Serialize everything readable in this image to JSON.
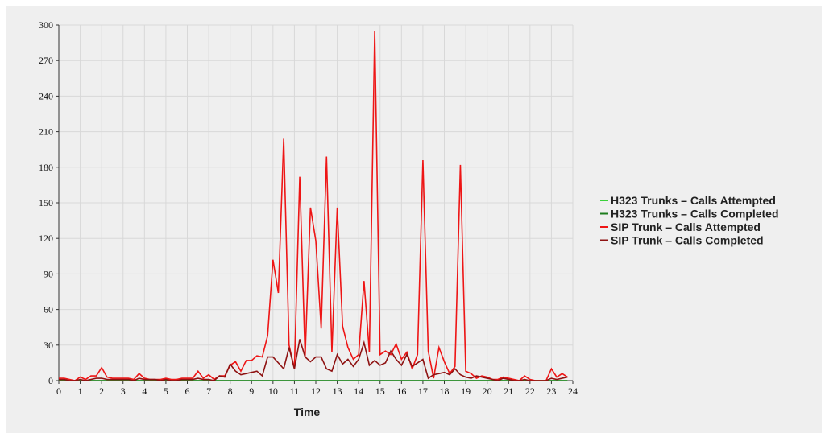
{
  "chart_data": {
    "type": "line",
    "x_label": "Time",
    "x": [
      0,
      0.25,
      0.5,
      0.75,
      1,
      1.25,
      1.5,
      1.75,
      2,
      2.25,
      2.5,
      2.75,
      3,
      3.25,
      3.5,
      3.75,
      4,
      4.25,
      4.5,
      4.75,
      5,
      5.25,
      5.5,
      5.75,
      6,
      6.25,
      6.5,
      6.75,
      7,
      7.25,
      7.5,
      7.75,
      8,
      8.25,
      8.5,
      8.75,
      9,
      9.25,
      9.5,
      9.75,
      10,
      10.25,
      10.5,
      10.75,
      11,
      11.25,
      11.5,
      11.75,
      12,
      12.25,
      12.5,
      12.75,
      13,
      13.25,
      13.5,
      13.75,
      14,
      14.25,
      14.5,
      14.75,
      15,
      15.25,
      15.5,
      15.75,
      16,
      16.25,
      16.5,
      16.75,
      17,
      17.25,
      17.5,
      17.75,
      18,
      18.25,
      18.5,
      18.75,
      19,
      19.25,
      19.5,
      19.75,
      20,
      20.25,
      20.5,
      20.75,
      21,
      21.25,
      21.5,
      21.75,
      22,
      22.25,
      22.5,
      22.75,
      23,
      23.25,
      23.5,
      23.75
    ],
    "series": [
      {
        "name": "H323 Trunks – Calls Attempted",
        "color": "#3ad13a",
        "values": [
          0,
          0,
          0,
          0,
          0,
          0,
          0,
          0,
          0,
          0,
          0,
          0,
          0,
          0,
          0,
          0,
          0,
          0,
          0,
          0,
          0,
          0,
          0,
          0,
          0,
          0,
          0,
          0,
          0,
          0,
          0,
          0,
          0,
          0,
          0,
          0,
          0,
          0,
          0,
          0,
          0,
          0,
          0,
          0,
          0,
          0,
          0,
          0,
          0,
          0,
          0,
          0,
          0,
          0,
          0,
          0,
          0,
          0,
          0,
          0,
          0,
          0,
          0,
          0,
          0,
          0,
          0,
          0,
          0,
          0,
          0,
          0,
          0,
          0,
          0,
          0,
          0,
          0,
          0,
          0,
          0,
          0,
          0,
          0,
          0,
          0,
          0,
          0,
          0,
          0,
          0,
          0,
          0,
          0,
          0,
          0
        ]
      },
      {
        "name": "H323 Trunks – Calls Completed",
        "color": "#1e7d1e",
        "values": [
          0,
          0,
          0,
          0,
          0,
          0,
          0,
          0,
          0,
          0,
          0,
          0,
          0,
          0,
          0,
          0,
          0,
          0,
          0,
          0,
          0,
          0,
          0,
          0,
          0,
          0,
          0,
          0,
          0,
          0,
          0,
          0,
          0,
          0,
          0,
          0,
          0,
          0,
          0,
          0,
          0,
          0,
          0,
          0,
          0,
          0,
          0,
          0,
          0,
          0,
          0,
          0,
          0,
          0,
          0,
          0,
          0,
          0,
          0,
          0,
          0,
          0,
          0,
          0,
          0,
          0,
          0,
          0,
          0,
          0,
          0,
          0,
          0,
          0,
          0,
          0,
          0,
          0,
          0,
          0,
          0,
          0,
          0,
          0,
          0,
          0,
          0,
          0,
          0,
          0,
          0,
          0,
          0,
          0,
          0,
          0
        ]
      },
      {
        "name": "SIP Trunk – Calls Attempted",
        "color": "#ee1515",
        "values": [
          2,
          2,
          1,
          0,
          3,
          1,
          4,
          4,
          11,
          3,
          2,
          2,
          2,
          2,
          1,
          6,
          2,
          1,
          1,
          1,
          2,
          1,
          1,
          2,
          2,
          2,
          8,
          2,
          5,
          1,
          4,
          4,
          13,
          16,
          8,
          17,
          17,
          21,
          20,
          38,
          102,
          74,
          204,
          30,
          10,
          172,
          20,
          146,
          118,
          44,
          189,
          24,
          146,
          46,
          28,
          18,
          22,
          84,
          24,
          295,
          22,
          25,
          22,
          31,
          18,
          24,
          10,
          22,
          186,
          25,
          2,
          28,
          16,
          6,
          12,
          182,
          8,
          6,
          2,
          4,
          3,
          1,
          1,
          3,
          2,
          1,
          0,
          4,
          1,
          0,
          0,
          0,
          10,
          3,
          6,
          3
        ]
      },
      {
        "name": "SIP Trunk – Calls Completed",
        "color": "#8e1212",
        "values": [
          1,
          1,
          0,
          0,
          1,
          0,
          1,
          2,
          2,
          1,
          1,
          1,
          1,
          1,
          0,
          2,
          1,
          1,
          1,
          0,
          1,
          0,
          0,
          1,
          1,
          1,
          2,
          1,
          1,
          0,
          4,
          3,
          14,
          8,
          5,
          6,
          7,
          8,
          4,
          20,
          20,
          15,
          10,
          28,
          10,
          35,
          20,
          16,
          20,
          20,
          10,
          8,
          22,
          14,
          18,
          12,
          18,
          32,
          13,
          17,
          13,
          15,
          25,
          18,
          13,
          22,
          12,
          15,
          18,
          2,
          5,
          6,
          7,
          5,
          10,
          5,
          3,
          2,
          4,
          3,
          2,
          1,
          0,
          2,
          1,
          0,
          0,
          1,
          0,
          0,
          0,
          0,
          2,
          1,
          2,
          3
        ]
      }
    ],
    "xlim": [
      0,
      24
    ],
    "xticks": [
      0,
      1,
      2,
      3,
      4,
      5,
      6,
      7,
      8,
      9,
      10,
      11,
      12,
      13,
      14,
      15,
      16,
      17,
      18,
      19,
      20,
      21,
      22,
      23,
      24
    ],
    "ylim": [
      0,
      300
    ],
    "yticks": [
      0,
      30,
      60,
      90,
      120,
      150,
      180,
      210,
      240,
      270,
      300
    ],
    "grid": true
  }
}
